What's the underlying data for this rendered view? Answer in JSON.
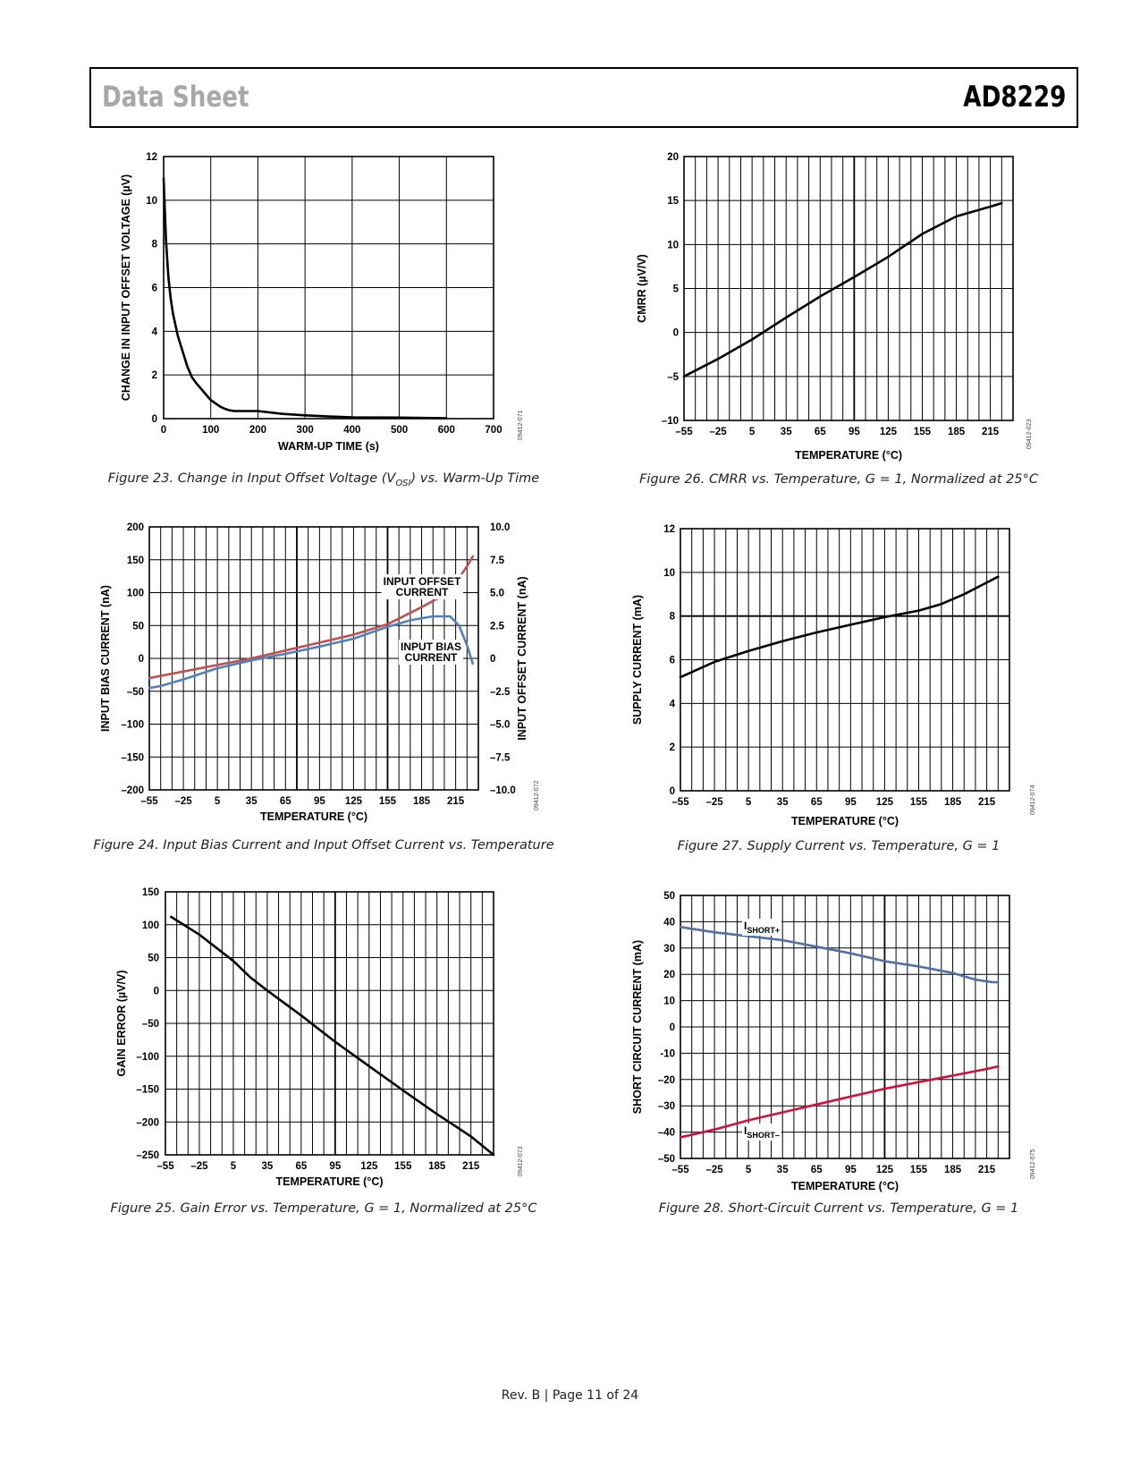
{
  "header": {
    "left": "Data Sheet",
    "right": "AD8229"
  },
  "footer": {
    "text": "Rev. B | Page 11 of 24"
  },
  "captions": {
    "fig23_pre": "Figure 23. Change in Input Offset Voltage (V",
    "fig23_sub": "OSI",
    "fig23_post": ") vs. Warm-Up Time",
    "fig24": "Figure 24. Input Bias Current and Input Offset Current vs. Temperature",
    "fig25": "Figure 25. Gain Error vs. Temperature, G = 1, Normalized at 25°C",
    "fig26": "Figure 26. CMRR vs. Temperature, G = 1, Normalized at 25°C",
    "fig27": "Figure 27. Supply Current vs. Temperature, G = 1",
    "fig28": "Figure 28. Short-Circuit Current vs. Temperature, G = 1"
  },
  "chart_data": [
    {
      "id": "fig23",
      "type": "line",
      "xlabel": "WARM-UP TIME (s)",
      "ylabel": "CHANGE IN INPUT OFFSET VOLTAGE (µV)",
      "xlim": [
        0,
        700
      ],
      "ylim": [
        0,
        12
      ],
      "xticks": [
        0,
        100,
        200,
        300,
        400,
        500,
        600,
        700
      ],
      "yticks": [
        0,
        2,
        4,
        6,
        8,
        10,
        12
      ],
      "code": "09412-071",
      "series": [
        {
          "color": "#000000",
          "x": [
            0,
            5,
            10,
            15,
            20,
            30,
            40,
            50,
            60,
            70,
            80,
            90,
            100,
            110,
            120,
            130,
            140,
            150,
            175,
            200,
            250,
            300,
            350,
            400,
            500,
            600
          ],
          "y": [
            11,
            8.2,
            6.5,
            5.5,
            4.8,
            3.8,
            3.1,
            2.4,
            1.9,
            1.6,
            1.35,
            1.1,
            0.85,
            0.7,
            0.55,
            0.45,
            0.38,
            0.35,
            0.35,
            0.35,
            0.22,
            0.15,
            0.1,
            0.06,
            0.05,
            0.02
          ]
        }
      ]
    },
    {
      "id": "fig24",
      "type": "line",
      "xlabel": "TEMPERATURE (°C)",
      "ylabel": "INPUT BIAS CURRENT (nA)",
      "y2label": "INPUT OFFSET CURRENT (nA)",
      "xlim": [
        -55,
        235
      ],
      "ylim": [
        -200,
        200
      ],
      "y2lim": [
        -10,
        10
      ],
      "xticks": [
        -55,
        -25,
        5,
        35,
        65,
        95,
        125,
        155,
        185,
        215
      ],
      "xtick_labels": [
        "–55",
        "–25",
        "5",
        "35",
        "65",
        "95",
        "125",
        "155",
        "185",
        "215"
      ],
      "yticks": [
        -200,
        -150,
        -100,
        -50,
        0,
        50,
        100,
        150,
        200
      ],
      "ytick_labels": [
        "–200",
        "–150",
        "–100",
        "–50",
        "0",
        "50",
        "100",
        "150",
        "200"
      ],
      "y2ticks": [
        -10,
        -7.5,
        -5,
        -2.5,
        0,
        2.5,
        5,
        7.5,
        10
      ],
      "y2tick_labels": [
        "–10.0",
        "–7.5",
        "–5.0",
        "–2.5",
        "0",
        "2.5",
        "5.0",
        "7.5",
        "10.0"
      ],
      "code": "09412-072",
      "annotations": [
        {
          "text": "INPUT OFFSET",
          "text2": "CURRENT"
        },
        {
          "text": "INPUT BIAS",
          "text2": "CURRENT"
        }
      ],
      "series": [
        {
          "name": "INPUT OFFSET CURRENT",
          "color": "#c0504d",
          "axis": "y",
          "x": [
            -55,
            -25,
            5,
            35,
            65,
            95,
            125,
            155,
            185,
            200,
            215,
            225,
            230
          ],
          "y": [
            -30,
            -20,
            -10,
            0,
            12,
            24,
            36,
            52,
            78,
            92,
            115,
            140,
            155
          ]
        },
        {
          "name": "INPUT BIAS CURRENT",
          "color": "#4f81bd",
          "axis": "y",
          "x": [
            -55,
            -45,
            -25,
            5,
            35,
            65,
            95,
            125,
            155,
            175,
            195,
            210,
            218,
            225,
            230
          ],
          "y": [
            -45,
            -42,
            -32,
            -15,
            -3,
            7,
            18,
            30,
            48,
            58,
            64,
            64,
            50,
            20,
            -8
          ]
        }
      ]
    },
    {
      "id": "fig25",
      "type": "line",
      "xlabel": "TEMPERATURE (°C)",
      "ylabel": "GAIN ERROR (µV/V)",
      "xlim": [
        -55,
        235
      ],
      "ylim": [
        -250,
        150
      ],
      "xticks": [
        -55,
        -25,
        5,
        35,
        65,
        95,
        125,
        155,
        185,
        215
      ],
      "xtick_labels": [
        "–55",
        "–25",
        "5",
        "35",
        "65",
        "95",
        "125",
        "155",
        "185",
        "215"
      ],
      "yticks": [
        -250,
        -200,
        -150,
        -100,
        -50,
        0,
        50,
        100,
        150
      ],
      "ytick_labels": [
        "–250",
        "–200",
        "–150",
        "–100",
        "–50",
        "0",
        "50",
        "100",
        "150"
      ],
      "code": "09412-073",
      "series": [
        {
          "color": "#000000",
          "x": [
            -50,
            -25,
            5,
            20,
            35,
            65,
            95,
            125,
            155,
            185,
            215,
            235
          ],
          "y": [
            112,
            85,
            45,
            20,
            0,
            -38,
            -78,
            -115,
            -152,
            -188,
            -222,
            -250
          ]
        }
      ]
    },
    {
      "id": "fig26",
      "type": "line",
      "xlabel": "TEMPERATURE (°C)",
      "ylabel": "CMRR (µV/V)",
      "xlim": [
        -55,
        235
      ],
      "ylim": [
        -10,
        20
      ],
      "xticks": [
        -55,
        -25,
        5,
        35,
        65,
        95,
        125,
        155,
        185,
        215
      ],
      "xtick_labels": [
        "–55",
        "–25",
        "5",
        "35",
        "65",
        "95",
        "125",
        "155",
        "185",
        "215"
      ],
      "yticks": [
        -10,
        -5,
        0,
        5,
        10,
        15,
        20
      ],
      "ytick_labels": [
        "–10",
        "–5",
        "0",
        "5",
        "10",
        "15",
        "20"
      ],
      "code": "09412-023",
      "series": [
        {
          "color": "#000000",
          "x": [
            -55,
            -25,
            5,
            35,
            65,
            95,
            125,
            155,
            185,
            215,
            225
          ],
          "y": [
            -5,
            -3,
            -0.8,
            1.7,
            4.1,
            6.3,
            8.6,
            11.2,
            13.2,
            14.3,
            14.7
          ]
        }
      ]
    },
    {
      "id": "fig27",
      "type": "line",
      "xlabel": "TEMPERATURE (°C)",
      "ylabel": "SUPPLY CURRENT (mA)",
      "xlim": [
        -55,
        235
      ],
      "ylim": [
        0,
        12
      ],
      "xticks": [
        -55,
        -25,
        5,
        35,
        65,
        95,
        125,
        155,
        185,
        215
      ],
      "xtick_labels": [
        "–55",
        "–25",
        "5",
        "35",
        "65",
        "95",
        "125",
        "155",
        "185",
        "215"
      ],
      "yticks": [
        0,
        2,
        4,
        6,
        8,
        10,
        12
      ],
      "code": "09412-074",
      "series": [
        {
          "color": "#000000",
          "x": [
            -55,
            -25,
            5,
            35,
            65,
            95,
            125,
            155,
            175,
            195,
            210,
            225
          ],
          "y": [
            5.2,
            5.9,
            6.4,
            6.85,
            7.25,
            7.6,
            7.95,
            8.25,
            8.55,
            9.0,
            9.4,
            9.8
          ]
        }
      ]
    },
    {
      "id": "fig28",
      "type": "line",
      "xlabel": "TEMPERATURE (°C)",
      "ylabel": "SHORT CIRCUIT CURRENT (mA)",
      "xlim": [
        -55,
        235
      ],
      "ylim": [
        -50,
        50
      ],
      "xticks": [
        -55,
        -25,
        5,
        35,
        65,
        95,
        125,
        155,
        185,
        215
      ],
      "xtick_labels": [
        "–55",
        "–25",
        "5",
        "35",
        "65",
        "95",
        "125",
        "155",
        "185",
        "215"
      ],
      "yticks": [
        -50,
        -40,
        -30,
        -20,
        -10,
        0,
        10,
        20,
        30,
        40,
        50
      ],
      "ytick_labels": [
        "–50",
        "–40",
        "–30",
        "–20",
        "-10",
        "0",
        "10",
        "20",
        "30",
        "40",
        "50"
      ],
      "code": "09412-075",
      "annotations": [
        {
          "text": "I",
          "sub": "SHORT+"
        },
        {
          "text": "I",
          "sub": "SHORT–"
        }
      ],
      "series": [
        {
          "color": "#4f6fa8",
          "x": [
            -55,
            -25,
            5,
            35,
            65,
            95,
            125,
            155,
            185,
            205,
            220,
            225
          ],
          "y": [
            38,
            36,
            34.5,
            33,
            30.5,
            28,
            25,
            23,
            20.5,
            18,
            17,
            17
          ]
        },
        {
          "color": "#d0103a",
          "x": [
            -55,
            -25,
            5,
            35,
            65,
            95,
            125,
            155,
            185,
            215,
            225
          ],
          "y": [
            -42,
            -39,
            -35.5,
            -32.5,
            -29.5,
            -26.5,
            -23.5,
            -21,
            -18.5,
            -16,
            -15
          ]
        }
      ]
    }
  ]
}
